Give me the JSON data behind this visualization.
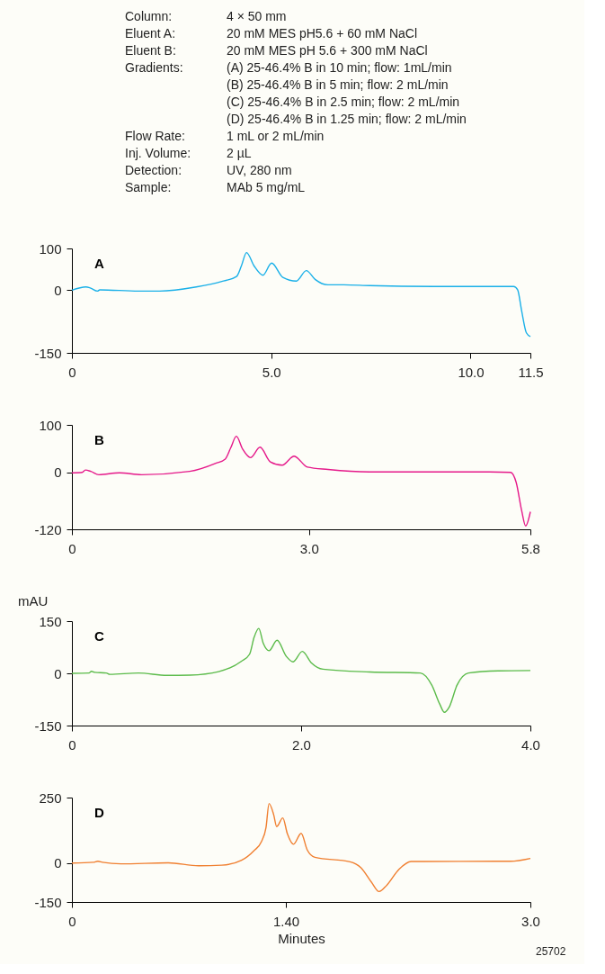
{
  "chart_data": [
    {
      "type": "other",
      "annotations": [
        "Column:\t4 × 50 mm",
        "Eluent A:\t20 mM MES pH5.6 + 60 mM NaCl",
        "Eluent B:\t20 mM MES pH 5.6 + 300 mM NaCl",
        "Gradients:\t(A) 25-46.4% B in 10 min; flow: 1mL/min",
        "\t(B) 25-46.4% B in 5 min; flow: 2 mL/min",
        "\t(C) 25-46.4% B in 2.5 min; flow: 2 mL/min",
        "\t(D) 25-46.4% B in 1.25 min; flow: 2 mL/min",
        "Flow Rate:\t1 mL or 2 mL/min",
        "Inj. Volume:\t2 µL",
        "Detection:\tUV, 280 nm",
        "Sample:\tMAb 5 mg/mL"
      ]
    },
    {
      "type": "line",
      "title": "A",
      "grid": false,
      "xlim": [
        0,
        11.5
      ],
      "xticks": [
        0,
        {
          "value": 5,
          "label": "5.0"
        },
        {
          "value": 10,
          "label": "10.0"
        },
        11.5
      ],
      "ylim": [
        -150,
        100
      ],
      "yticks": [
        -150,
        0,
        100
      ],
      "series": [
        {
          "color": "#1ab0e8",
          "x": [
            0,
            0.35,
            0.47,
            0.64,
            0.7,
            1.67,
            2.2,
            3.12,
            3.76,
            4.13,
            4.25,
            4.38,
            4.57,
            4.79,
            5.01,
            5.29,
            5.63,
            5.88,
            6.1,
            6.42,
            6.82,
            7.47,
            9.07,
            11.08,
            11.18,
            11.28,
            11.4,
            11.5
          ],
          "values": [
            0,
            8,
            5,
            -2,
            1,
            -2,
            -2,
            8,
            21,
            33,
            58,
            90,
            58,
            36,
            65,
            31,
            22,
            47,
            26,
            13,
            13,
            11,
            9,
            9,
            1,
            -49,
            -102,
            -111
          ]
        }
      ]
    },
    {
      "type": "line",
      "title": "B",
      "grid": false,
      "xlim": [
        0,
        5.8
      ],
      "xticks": [
        0,
        {
          "value": 3,
          "label": "3.0"
        },
        5.8
      ],
      "ylim": [
        -120,
        100
      ],
      "yticks": [
        -120,
        0,
        100
      ],
      "series": [
        {
          "color": "#e5198a",
          "x": [
            0,
            0.13,
            0.17,
            0.24,
            0.34,
            0.6,
            0.88,
            1.49,
            1.82,
            1.94,
            2.01,
            2.08,
            2.16,
            2.26,
            2.38,
            2.51,
            2.66,
            2.81,
            2.98,
            3.24,
            3.76,
            5.28,
            5.55,
            5.62,
            5.69,
            5.74,
            5.8
          ],
          "values": [
            -1,
            0,
            5,
            2,
            -5,
            -1,
            -5,
            2,
            19,
            28,
            52,
            76,
            49,
            31,
            53,
            22,
            15,
            34,
            11,
            6,
            1,
            1,
            0,
            -21,
            -81,
            -113,
            -83
          ]
        }
      ]
    },
    {
      "type": "line",
      "title": "C",
      "ylabel": "mAU",
      "grid": false,
      "xlim": [
        0,
        4
      ],
      "xticks": [
        0,
        {
          "value": 2,
          "label": "2.0"
        },
        {
          "value": 4,
          "label": "4.0"
        }
      ],
      "ylim": [
        -150,
        150
      ],
      "yticks": [
        -150,
        0,
        150
      ],
      "series": [
        {
          "color": "#5bbb4a",
          "x": [
            0,
            0.15,
            0.17,
            0.2,
            0.3,
            0.33,
            0.58,
            0.83,
            1.03,
            1.28,
            1.48,
            1.55,
            1.59,
            1.63,
            1.67,
            1.72,
            1.79,
            1.87,
            1.93,
            2.01,
            2.09,
            2.19,
            2.6,
            3.04,
            3.14,
            3.21,
            3.25,
            3.29,
            3.36,
            3.46,
            3.72,
            4.0
          ],
          "values": [
            0,
            1,
            6,
            3,
            1,
            -3,
            1,
            -6,
            -5,
            5,
            35,
            55,
            104,
            129,
            86,
            65,
            95,
            49,
            33,
            63,
            30,
            12,
            4,
            1,
            -34,
            -89,
            -112,
            -98,
            -34,
            1,
            7,
            8
          ]
        }
      ]
    },
    {
      "type": "line",
      "title": "D",
      "xlabel": "Minutes",
      "annotations": [
        "25702"
      ],
      "grid": false,
      "xlim": [
        0,
        3
      ],
      "xticks": [
        0,
        {
          "value": 1.4,
          "label": "1.40"
        },
        {
          "value": 3,
          "label": "3.0"
        }
      ],
      "ylim": [
        -150,
        250
      ],
      "yticks": [
        -150,
        0,
        250
      ],
      "series": [
        {
          "color": "#f07f30",
          "x": [
            0,
            0.14,
            0.17,
            0.2,
            0.32,
            0.63,
            0.83,
            0.98,
            1.11,
            1.19,
            1.24,
            1.27,
            1.29,
            1.32,
            1.34,
            1.38,
            1.41,
            1.45,
            1.5,
            1.54,
            1.59,
            1.82,
            1.89,
            1.96,
            2.01,
            2.06,
            2.14,
            2.22,
            2.87,
            3.0
          ],
          "values": [
            -1,
            2,
            6,
            2,
            -4,
            0,
            -11,
            -9,
            10,
            46,
            81,
            135,
            227,
            185,
            139,
            172,
            111,
            71,
            113,
            49,
            21,
            4,
            -18,
            -74,
            -110,
            -86,
            -25,
            5,
            6,
            17
          ]
        }
      ]
    }
  ]
}
